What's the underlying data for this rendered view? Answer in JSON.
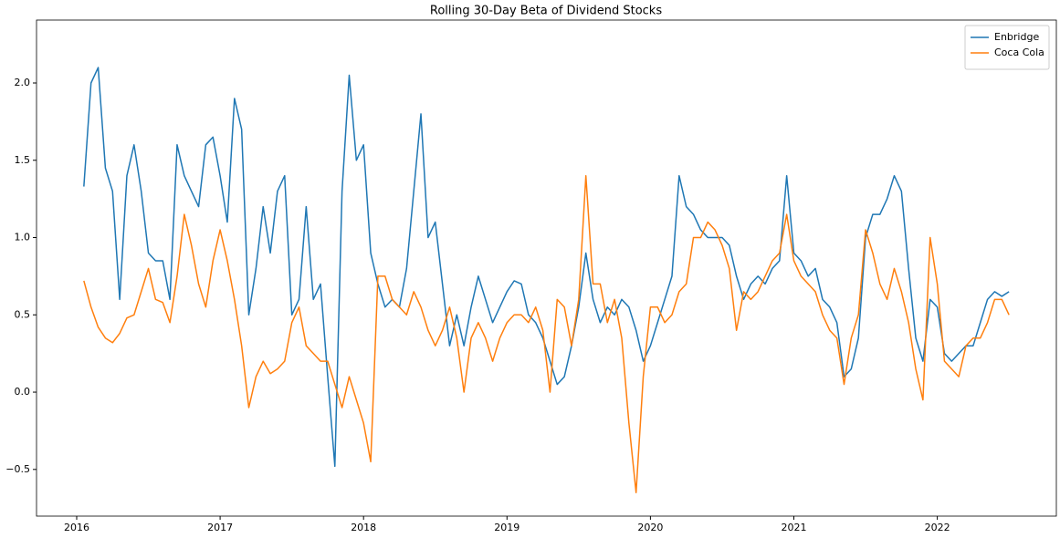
{
  "chart_data": {
    "type": "line",
    "title": "Rolling 30-Day Beta of Dividend Stocks",
    "x": [
      2016.05,
      2016.1,
      2016.15,
      2016.2,
      2016.25,
      2016.3,
      2016.35,
      2016.4,
      2016.45,
      2016.5,
      2016.55,
      2016.6,
      2016.65,
      2016.7,
      2016.75,
      2016.8,
      2016.85,
      2016.9,
      2016.95,
      2017.0,
      2017.05,
      2017.1,
      2017.15,
      2017.2,
      2017.25,
      2017.3,
      2017.35,
      2017.4,
      2017.45,
      2017.5,
      2017.55,
      2017.6,
      2017.65,
      2017.7,
      2017.75,
      2017.8,
      2017.85,
      2017.9,
      2017.95,
      2018.0,
      2018.05,
      2018.1,
      2018.15,
      2018.2,
      2018.25,
      2018.3,
      2018.35,
      2018.4,
      2018.45,
      2018.5,
      2018.55,
      2018.6,
      2018.65,
      2018.7,
      2018.75,
      2018.8,
      2018.85,
      2018.9,
      2018.95,
      2019.0,
      2019.05,
      2019.1,
      2019.15,
      2019.2,
      2019.25,
      2019.3,
      2019.35,
      2019.4,
      2019.45,
      2019.5,
      2019.55,
      2019.6,
      2019.65,
      2019.7,
      2019.75,
      2019.8,
      2019.85,
      2019.9,
      2019.95,
      2020.0,
      2020.05,
      2020.1,
      2020.15,
      2020.2,
      2020.25,
      2020.3,
      2020.35,
      2020.4,
      2020.45,
      2020.5,
      2020.55,
      2020.6,
      2020.65,
      2020.7,
      2020.75,
      2020.8,
      2020.85,
      2020.9,
      2020.95,
      2021.0,
      2021.05,
      2021.1,
      2021.15,
      2021.2,
      2021.25,
      2021.3,
      2021.35,
      2021.4,
      2021.45,
      2021.5,
      2021.55,
      2021.6,
      2021.65,
      2021.7,
      2021.75,
      2021.8,
      2021.85,
      2021.9,
      2021.95,
      2022.0,
      2022.05,
      2022.1,
      2022.15,
      2022.2,
      2022.25,
      2022.3,
      2022.35,
      2022.4,
      2022.45,
      2022.5
    ],
    "series": [
      {
        "name": "Enbridge",
        "color": "#1f77b4",
        "values": [
          1.33,
          2.0,
          2.1,
          1.45,
          1.3,
          0.6,
          1.4,
          1.6,
          1.3,
          0.9,
          0.85,
          0.85,
          0.6,
          1.6,
          1.4,
          1.3,
          1.2,
          1.6,
          1.65,
          1.4,
          1.1,
          1.9,
          1.7,
          0.5,
          0.8,
          1.2,
          0.9,
          1.3,
          1.4,
          0.5,
          0.6,
          1.2,
          0.6,
          0.7,
          0.1,
          -0.48,
          1.3,
          2.05,
          1.5,
          1.6,
          0.9,
          0.7,
          0.55,
          0.6,
          0.55,
          0.8,
          1.3,
          1.8,
          1.0,
          1.1,
          0.7,
          0.3,
          0.5,
          0.3,
          0.55,
          0.75,
          0.6,
          0.45,
          0.55,
          0.65,
          0.72,
          0.7,
          0.5,
          0.45,
          0.35,
          0.2,
          0.05,
          0.1,
          0.3,
          0.55,
          0.9,
          0.6,
          0.45,
          0.55,
          0.5,
          0.6,
          0.55,
          0.4,
          0.2,
          0.3,
          0.45,
          0.6,
          0.75,
          1.4,
          1.2,
          1.15,
          1.05,
          1.0,
          1.0,
          1.0,
          0.95,
          0.75,
          0.6,
          0.7,
          0.75,
          0.7,
          0.8,
          0.85,
          1.4,
          0.9,
          0.85,
          0.75,
          0.8,
          0.6,
          0.55,
          0.45,
          0.1,
          0.15,
          0.35,
          1.0,
          1.15,
          1.15,
          1.25,
          1.4,
          1.3,
          0.8,
          0.35,
          0.2,
          0.6,
          0.55,
          0.25,
          0.2,
          0.25,
          0.3,
          0.3,
          0.45,
          0.6,
          0.65,
          0.62,
          0.65
        ]
      },
      {
        "name": "Coca Cola",
        "color": "#ff7f0e",
        "values": [
          0.72,
          0.55,
          0.42,
          0.35,
          0.32,
          0.38,
          0.48,
          0.5,
          0.65,
          0.8,
          0.6,
          0.58,
          0.45,
          0.75,
          1.15,
          0.95,
          0.7,
          0.55,
          0.85,
          1.05,
          0.85,
          0.6,
          0.3,
          -0.1,
          0.1,
          0.2,
          0.12,
          0.15,
          0.2,
          0.45,
          0.55,
          0.3,
          0.25,
          0.2,
          0.2,
          0.05,
          -0.1,
          0.1,
          -0.05,
          -0.2,
          -0.45,
          0.75,
          0.75,
          0.6,
          0.55,
          0.5,
          0.65,
          0.55,
          0.4,
          0.3,
          0.4,
          0.55,
          0.35,
          0.0,
          0.35,
          0.45,
          0.35,
          0.2,
          0.35,
          0.45,
          0.5,
          0.5,
          0.45,
          0.55,
          0.4,
          0.0,
          0.6,
          0.55,
          0.3,
          0.6,
          1.4,
          0.7,
          0.7,
          0.45,
          0.6,
          0.35,
          -0.2,
          -0.65,
          0.1,
          0.55,
          0.55,
          0.45,
          0.5,
          0.65,
          0.7,
          1.0,
          1.0,
          1.1,
          1.05,
          0.95,
          0.8,
          0.4,
          0.65,
          0.6,
          0.65,
          0.75,
          0.85,
          0.9,
          1.15,
          0.85,
          0.75,
          0.7,
          0.65,
          0.5,
          0.4,
          0.35,
          0.05,
          0.35,
          0.5,
          1.05,
          0.9,
          0.7,
          0.6,
          0.8,
          0.65,
          0.45,
          0.15,
          -0.05,
          1.0,
          0.7,
          0.2,
          0.15,
          0.1,
          0.3,
          0.35,
          0.35,
          0.45,
          0.6,
          0.6,
          0.5
        ]
      }
    ],
    "xlim": [
      2015.72,
      2022.83
    ],
    "xticks": [
      2016,
      2017,
      2018,
      2019,
      2020,
      2021,
      2022
    ],
    "ylim": [
      -0.802,
      2.407
    ],
    "yticks": [
      {
        "value": -0.5,
        "label": "−0.5"
      },
      {
        "value": 0,
        "label": "0.0"
      },
      {
        "value": 0.5,
        "label": "0.5"
      },
      {
        "value": 1,
        "label": "1.0"
      },
      {
        "value": 1.5,
        "label": "1.5"
      },
      {
        "value": 2,
        "label": "2.0"
      }
    ],
    "legend": "upper right"
  }
}
